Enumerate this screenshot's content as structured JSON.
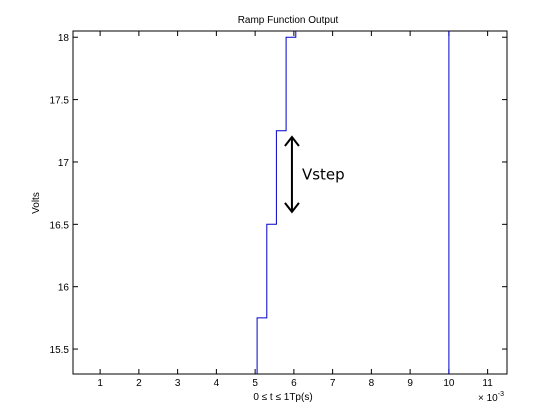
{
  "chart_data": {
    "type": "line",
    "title": "Ramp Function Output",
    "xlabel": "0 ≤ t ≤ 1Tp(s)",
    "ylabel": "Volts",
    "x_multiplier_label": "× 10",
    "x_multiplier_exponent": "-3",
    "xlim": [
      0.3,
      11.5
    ],
    "ylim": [
      15.3,
      18.05
    ],
    "xticks": [
      1,
      2,
      3,
      4,
      5,
      6,
      7,
      8,
      9,
      10,
      11
    ],
    "xtick_labels": [
      "1",
      "2",
      "3",
      "4",
      "5",
      "6",
      "7",
      "8",
      "9",
      "10",
      "11"
    ],
    "yticks": [
      15.5,
      16,
      16.5,
      17,
      17.5,
      18
    ],
    "ytick_labels": [
      "15.5",
      "16",
      "16.5",
      "17",
      "17.5",
      "18"
    ],
    "grid": false,
    "series": [
      {
        "color": "#0000cc",
        "x": [
          5.05,
          5.05,
          5.3,
          5.3,
          5.55,
          5.55,
          5.8,
          5.8,
          6.05,
          6.05
        ],
        "y": [
          15.3,
          15.75,
          15.75,
          16.5,
          16.5,
          17.25,
          17.25,
          18.0,
          18.0,
          18.05
        ]
      },
      {
        "color": "#0000cc",
        "x": [
          10,
          10
        ],
        "y": [
          15.3,
          18.05
        ]
      }
    ],
    "annotation": {
      "text": "Vstep",
      "x": 5.95,
      "y_from": 16.6,
      "y_to": 17.2
    }
  }
}
